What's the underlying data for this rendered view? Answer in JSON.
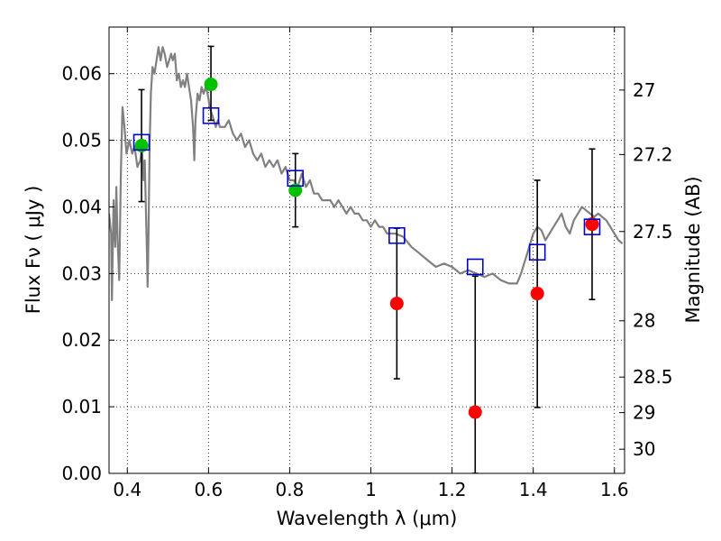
{
  "chart_data": {
    "type": "scatter",
    "xlabel": "Wavelength  λ (μm)",
    "ylabel": "Flux  Fν  ( μJy )",
    "y2label": "Magnitude (AB)",
    "xlim": [
      0.355,
      1.625
    ],
    "ylim": [
      0.0,
      0.067
    ],
    "grid": true,
    "x_ticks": [
      {
        "value": 0.4,
        "label": "0.4"
      },
      {
        "value": 0.6,
        "label": "0.6"
      },
      {
        "value": 0.8,
        "label": "0.8"
      },
      {
        "value": 1.0,
        "label": "1"
      },
      {
        "value": 1.2,
        "label": "1.2"
      },
      {
        "value": 1.4,
        "label": "1.4"
      },
      {
        "value": 1.6,
        "label": "1.6"
      }
    ],
    "y_ticks": [
      {
        "value": 0.0,
        "label": "0.00"
      },
      {
        "value": 0.01,
        "label": "0.01"
      },
      {
        "value": 0.02,
        "label": "0.02"
      },
      {
        "value": 0.03,
        "label": "0.03"
      },
      {
        "value": 0.04,
        "label": "0.04"
      },
      {
        "value": 0.05,
        "label": "0.05"
      },
      {
        "value": 0.06,
        "label": "0.06"
      }
    ],
    "mag_ticks": [
      {
        "mag": 27,
        "label": "27"
      },
      {
        "mag": 27.2,
        "label": "27.2"
      },
      {
        "mag": 27.5,
        "label": "27.5"
      },
      {
        "mag": 28,
        "label": "28"
      },
      {
        "mag": 28.5,
        "label": "28.5"
      },
      {
        "mag": 29,
        "label": "29"
      },
      {
        "mag": 30,
        "label": "30"
      }
    ],
    "series": [
      {
        "type": "line",
        "color": "#808080",
        "points": [
          [
            0.355,
            0.039
          ],
          [
            0.36,
            0.036
          ],
          [
            0.362,
            0.026
          ],
          [
            0.366,
            0.041
          ],
          [
            0.37,
            0.034
          ],
          [
            0.373,
            0.043
          ],
          [
            0.376,
            0.035
          ],
          [
            0.38,
            0.029
          ],
          [
            0.384,
            0.045
          ],
          [
            0.388,
            0.055
          ],
          [
            0.393,
            0.052
          ],
          [
            0.398,
            0.048
          ],
          [
            0.405,
            0.05
          ],
          [
            0.412,
            0.048
          ],
          [
            0.418,
            0.049
          ],
          [
            0.425,
            0.046
          ],
          [
            0.432,
            0.047
          ],
          [
            0.436,
            0.049
          ],
          [
            0.44,
            0.044
          ],
          [
            0.443,
            0.047
          ],
          [
            0.446,
            0.039
          ],
          [
            0.448,
            0.034
          ],
          [
            0.45,
            0.028
          ],
          [
            0.452,
            0.035
          ],
          [
            0.455,
            0.049
          ],
          [
            0.458,
            0.057
          ],
          [
            0.462,
            0.061
          ],
          [
            0.467,
            0.06
          ],
          [
            0.472,
            0.062
          ],
          [
            0.477,
            0.064
          ],
          [
            0.482,
            0.062
          ],
          [
            0.487,
            0.064
          ],
          [
            0.492,
            0.063
          ],
          [
            0.498,
            0.061
          ],
          [
            0.503,
            0.062
          ],
          [
            0.508,
            0.063
          ],
          [
            0.512,
            0.062
          ],
          [
            0.517,
            0.063
          ],
          [
            0.522,
            0.059
          ],
          [
            0.527,
            0.06
          ],
          [
            0.532,
            0.058
          ],
          [
            0.537,
            0.059
          ],
          [
            0.542,
            0.058
          ],
          [
            0.547,
            0.06
          ],
          [
            0.552,
            0.058
          ],
          [
            0.557,
            0.056
          ],
          [
            0.562,
            0.052
          ],
          [
            0.565,
            0.047
          ],
          [
            0.568,
            0.053
          ],
          [
            0.573,
            0.057
          ],
          [
            0.578,
            0.056
          ],
          [
            0.583,
            0.058
          ],
          [
            0.588,
            0.057
          ],
          [
            0.593,
            0.058
          ],
          [
            0.598,
            0.057
          ],
          [
            0.603,
            0.055
          ],
          [
            0.608,
            0.054
          ],
          [
            0.613,
            0.053
          ],
          [
            0.618,
            0.052
          ],
          [
            0.623,
            0.053
          ],
          [
            0.628,
            0.052
          ],
          [
            0.64,
            0.052
          ],
          [
            0.65,
            0.053
          ],
          [
            0.66,
            0.051
          ],
          [
            0.67,
            0.05
          ],
          [
            0.68,
            0.051
          ],
          [
            0.69,
            0.049
          ],
          [
            0.7,
            0.05
          ],
          [
            0.71,
            0.048
          ],
          [
            0.72,
            0.047
          ],
          [
            0.73,
            0.048
          ],
          [
            0.74,
            0.046
          ],
          [
            0.75,
            0.047
          ],
          [
            0.76,
            0.046
          ],
          [
            0.77,
            0.047
          ],
          [
            0.78,
            0.045
          ],
          [
            0.79,
            0.046
          ],
          [
            0.8,
            0.044
          ],
          [
            0.81,
            0.044
          ],
          [
            0.82,
            0.043
          ],
          [
            0.83,
            0.045
          ],
          [
            0.84,
            0.043
          ],
          [
            0.85,
            0.044
          ],
          [
            0.86,
            0.042
          ],
          [
            0.87,
            0.042
          ],
          [
            0.88,
            0.041
          ],
          [
            0.89,
            0.041
          ],
          [
            0.9,
            0.041
          ],
          [
            0.91,
            0.04
          ],
          [
            0.92,
            0.041
          ],
          [
            0.93,
            0.04
          ],
          [
            0.94,
            0.039
          ],
          [
            0.95,
            0.04
          ],
          [
            0.96,
            0.039
          ],
          [
            0.97,
            0.039
          ],
          [
            0.98,
            0.038
          ],
          [
            0.99,
            0.038
          ],
          [
            1.0,
            0.037
          ],
          [
            1.01,
            0.038
          ],
          [
            1.02,
            0.037
          ],
          [
            1.03,
            0.037
          ],
          [
            1.04,
            0.036
          ],
          [
            1.05,
            0.036
          ],
          [
            1.06,
            0.036
          ],
          [
            1.08,
            0.0355
          ],
          [
            1.1,
            0.034
          ],
          [
            1.12,
            0.033
          ],
          [
            1.14,
            0.032
          ],
          [
            1.16,
            0.031
          ],
          [
            1.18,
            0.0315
          ],
          [
            1.2,
            0.031
          ],
          [
            1.22,
            0.03
          ],
          [
            1.24,
            0.0305
          ],
          [
            1.26,
            0.03
          ],
          [
            1.28,
            0.0295
          ],
          [
            1.3,
            0.03
          ],
          [
            1.32,
            0.029
          ],
          [
            1.34,
            0.0285
          ],
          [
            1.36,
            0.0285
          ],
          [
            1.37,
            0.03
          ],
          [
            1.38,
            0.032
          ],
          [
            1.39,
            0.034
          ],
          [
            1.4,
            0.036
          ],
          [
            1.41,
            0.037
          ],
          [
            1.42,
            0.0365
          ],
          [
            1.43,
            0.035
          ],
          [
            1.44,
            0.036
          ],
          [
            1.45,
            0.037
          ],
          [
            1.46,
            0.038
          ],
          [
            1.47,
            0.039
          ],
          [
            1.48,
            0.037
          ],
          [
            1.49,
            0.036
          ],
          [
            1.5,
            0.038
          ],
          [
            1.51,
            0.039
          ],
          [
            1.52,
            0.04
          ],
          [
            1.53,
            0.0395
          ],
          [
            1.54,
            0.039
          ],
          [
            1.55,
            0.0385
          ],
          [
            1.56,
            0.039
          ],
          [
            1.57,
            0.0385
          ],
          [
            1.58,
            0.038
          ],
          [
            1.59,
            0.037
          ],
          [
            1.6,
            0.036
          ],
          [
            1.61,
            0.035
          ],
          [
            1.62,
            0.0345
          ]
        ]
      },
      {
        "type": "scatter",
        "marker": "circle",
        "color": "#00c000",
        "points": [
          {
            "x": 0.435,
            "y": 0.0492
          },
          {
            "x": 0.606,
            "y": 0.0584
          },
          {
            "x": 0.814,
            "y": 0.0425
          }
        ]
      },
      {
        "type": "scatter",
        "marker": "circle",
        "color": "#ff0000",
        "points": [
          {
            "x": 1.064,
            "y": 0.0255
          },
          {
            "x": 1.257,
            "y": 0.0092
          },
          {
            "x": 1.41,
            "y": 0.027
          },
          {
            "x": 1.545,
            "y": 0.0374
          }
        ]
      },
      {
        "type": "errorbar",
        "marker": "open-square",
        "color": "#0000cc",
        "errorbar_color": "#000000",
        "points": [
          {
            "x": 0.435,
            "y": 0.0497,
            "ylow": 0.0408,
            "yhigh": 0.0576
          },
          {
            "x": 0.606,
            "y": 0.0537,
            "ylow": 0.053,
            "yhigh": 0.0641
          },
          {
            "x": 0.814,
            "y": 0.0443,
            "ylow": 0.037,
            "yhigh": 0.048
          },
          {
            "x": 1.064,
            "y": 0.0357,
            "ylow": 0.0142,
            "yhigh": 0.0368
          },
          {
            "x": 1.257,
            "y": 0.031,
            "ylow": 0.0,
            "yhigh": 0.0296
          },
          {
            "x": 1.41,
            "y": 0.0332,
            "ylow": 0.0099,
            "yhigh": 0.044
          },
          {
            "x": 1.545,
            "y": 0.037,
            "ylow": 0.0261,
            "yhigh": 0.0487
          }
        ]
      }
    ]
  }
}
